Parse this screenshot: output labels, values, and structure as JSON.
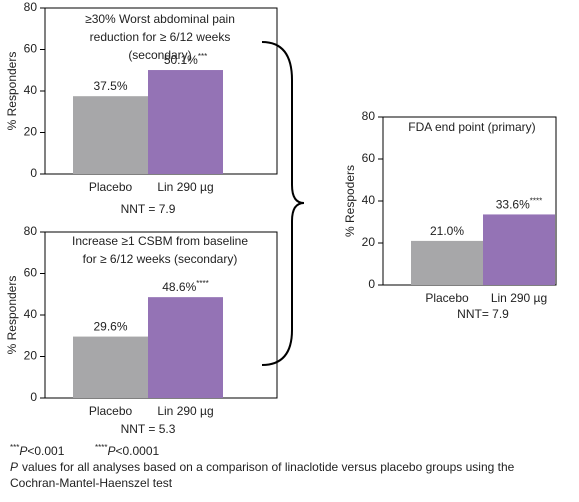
{
  "chart_data": [
    {
      "type": "bar",
      "title": [
        "≥30% Worst abdominal pain",
        "reduction for ≥ 6/12 weeks",
        "(secondary)"
      ],
      "y_label": "% Responders",
      "categories": [
        "Placebo",
        "Lin 290 µg"
      ],
      "values": [
        37.5,
        50.1
      ],
      "value_labels": [
        "37.5%",
        "50.1%"
      ],
      "significance": [
        null,
        "***"
      ],
      "colors": [
        "#a7a7a9",
        "#9473b5"
      ],
      "note": "NNT = 7.9",
      "ylim": [
        0,
        80
      ],
      "yticks": [
        0,
        20,
        40,
        60,
        80
      ]
    },
    {
      "type": "bar",
      "title": [
        "Increase ≥1 CSBM from baseline",
        "for ≥ 6/12 weeks (secondary)"
      ],
      "y_label": "% Responders",
      "categories": [
        "Placebo",
        "Lin 290 µg"
      ],
      "values": [
        29.6,
        48.6
      ],
      "value_labels": [
        "29.6%",
        "48.6%"
      ],
      "significance": [
        null,
        "****"
      ],
      "colors": [
        "#a7a7a9",
        "#9473b5"
      ],
      "note": "NNT = 5.3",
      "ylim": [
        0,
        80
      ],
      "yticks": [
        0,
        20,
        40,
        60,
        80
      ]
    },
    {
      "type": "bar",
      "title": [
        "FDA end point (primary)"
      ],
      "y_label": "% Respoders",
      "categories": [
        "Placebo",
        "Lin 290 µg"
      ],
      "values": [
        21.0,
        33.6
      ],
      "value_labels": [
        "21.0%",
        "33.6%"
      ],
      "significance": [
        null,
        "****"
      ],
      "colors": [
        "#a7a7a9",
        "#9473b5"
      ],
      "note": "NNT= 7.9",
      "ylim": [
        0,
        80
      ],
      "yticks": [
        0,
        20,
        40,
        60,
        80
      ]
    }
  ],
  "footnotes": {
    "stars": [
      {
        "stars": "***",
        "symbol": "P",
        "text": "<0.001"
      },
      {
        "stars": "****",
        "symbol": "P",
        "text": "<0.0001"
      }
    ],
    "symbol": "P",
    "lines": [
      "values for all analyses based on a comparison of linaclotide versus placebo groups using the",
      "Cochran-Mantel-Haenszel test"
    ]
  }
}
